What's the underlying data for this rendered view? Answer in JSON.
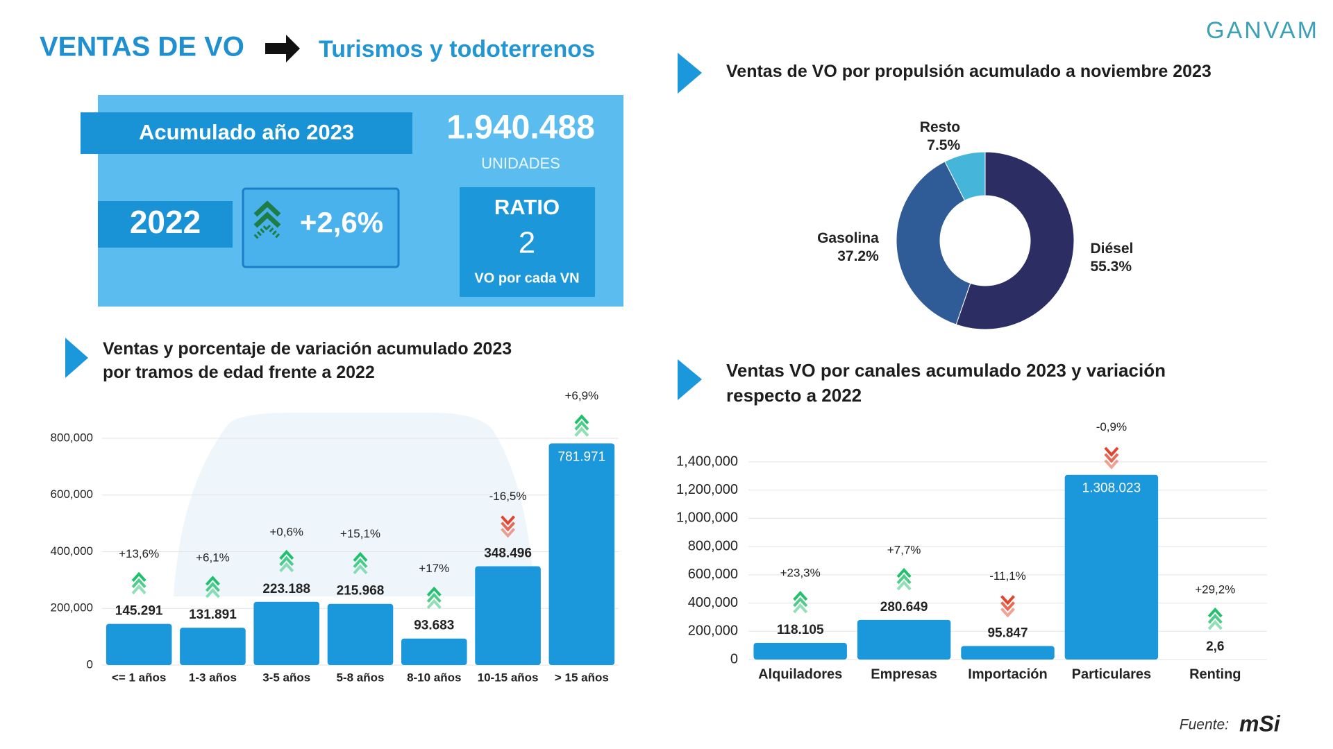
{
  "header": {
    "title": "VENTAS DE VO",
    "subtitle": "Turismos y todoterrenos",
    "brand": "GANVAM"
  },
  "kpi": {
    "label": "Acumulado año 2023",
    "total": "1.940.488",
    "unit": "UNIDADES",
    "year": "2022",
    "change": "+2,6%",
    "ratio_title": "RATIO",
    "ratio": "2",
    "ratio_note": "VO por cada VN"
  },
  "source": {
    "label": "Fuente:",
    "brand": "mSi"
  },
  "chart_data": [
    {
      "type": "donut",
      "title": "Ventas de VO por propulsión acumulado a noviembre 2023",
      "categories": [
        "Diésel",
        "Gasolina",
        "Resto"
      ],
      "values": [
        55.3,
        37.2,
        7.5
      ],
      "value_labels": [
        "55.3%",
        "37.2%",
        "7.5%"
      ],
      "colors": [
        "#2c2d62",
        "#2f5b97",
        "#45b5da"
      ]
    },
    {
      "type": "bar",
      "title": "Ventas y porcentaje de variación acumulado 2023\npor tramos de edad frente a 2022",
      "categories": [
        "<= 1 años",
        "1-3 años",
        "3-5 años",
        "5-8 años",
        "8-10 años",
        "10-15 años",
        "> 15 años"
      ],
      "values": [
        145291,
        131891,
        223188,
        215968,
        93683,
        348496,
        781971
      ],
      "value_labels": [
        "145.291",
        "131.891",
        "223.188",
        "215.968",
        "93.683",
        "348.496",
        "781.971"
      ],
      "changes": [
        "+13,6%",
        "+6,1%",
        "+0,6%",
        "+15,1%",
        "+17%",
        "-16,5%",
        "+6,9%"
      ],
      "color": "#1b97dc",
      "ylim": [
        0,
        800000
      ],
      "yticks": [
        0,
        {
          "value": 200000,
          "label": "200,000"
        },
        {
          "value": 400000,
          "label": "400,000"
        },
        {
          "value": 600000,
          "label": "600,000"
        },
        {
          "value": 800000,
          "label": "800,000"
        }
      ],
      "grid": true
    },
    {
      "type": "bar",
      "title": "Ventas VO por canales acumulado 2023 y variación\nrespecto a 2022",
      "categories": [
        "Alquiladores",
        "Empresas",
        "Importación",
        "Particulares",
        "Renting"
      ],
      "values": [
        118105,
        280649,
        95847,
        1308023,
        2.6
      ],
      "value_labels": [
        "118.105",
        "280.649",
        "95.847",
        "1.308.023",
        "2,6"
      ],
      "changes": [
        "+23,3%",
        "+7,7%",
        "-11,1%",
        "-0,9%",
        "+29,2%"
      ],
      "color": "#1b97dc",
      "ylim": [
        0,
        1400000
      ],
      "yticks": [
        0,
        {
          "value": 200000,
          "label": "200,000"
        },
        {
          "value": 400000,
          "label": "400,000"
        },
        {
          "value": 600000,
          "label": "600,000"
        },
        {
          "value": 800000,
          "label": "800,000"
        },
        {
          "value": 1000000,
          "label": "1,000,000"
        },
        {
          "value": 1200000,
          "label": "1,200,000"
        },
        {
          "value": 1400000,
          "label": "1,400,000"
        }
      ],
      "grid": true
    }
  ]
}
